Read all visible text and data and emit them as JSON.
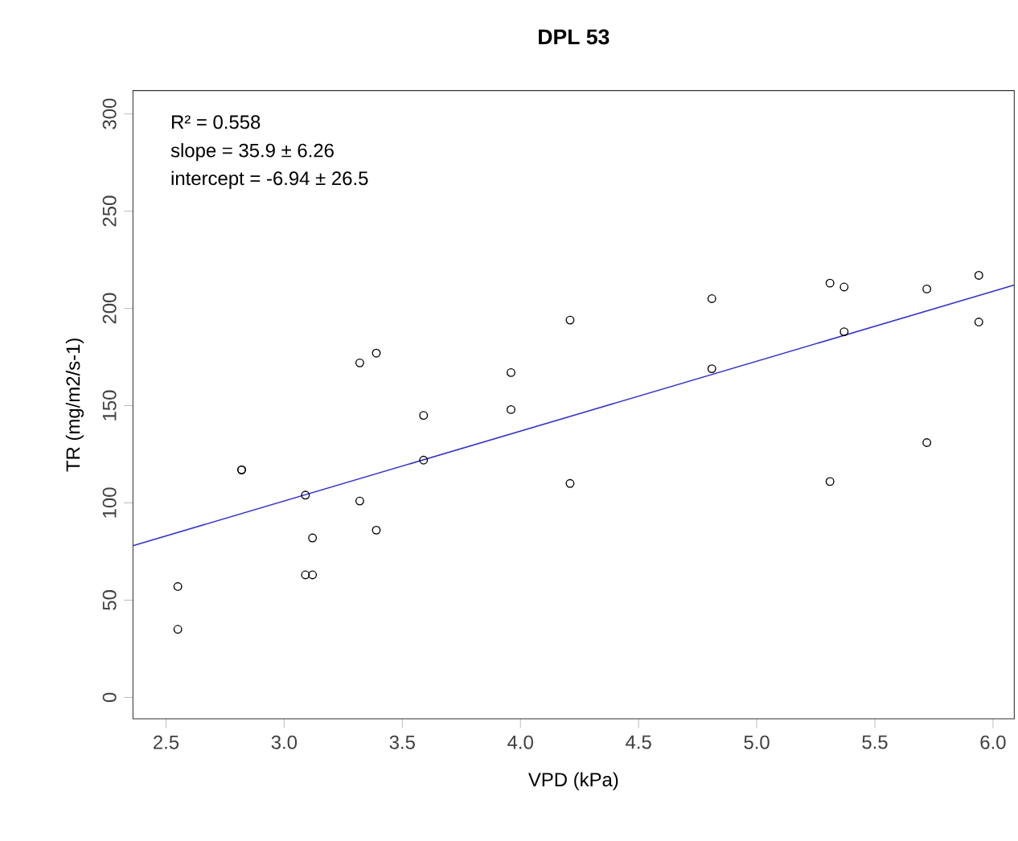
{
  "chart_data": {
    "type": "scatter",
    "title": "DPL 53",
    "xlabel": "VPD (kPa)",
    "ylabel": "TR (mg/m2/s-1)",
    "xlim": [
      2.36,
      6.09
    ],
    "ylim": [
      -11,
      312
    ],
    "xticks": [
      {
        "value": 2.5,
        "label": "2.5"
      },
      {
        "value": 3,
        "label": "3.0"
      },
      {
        "value": 3.5,
        "label": "3.5"
      },
      {
        "value": 4,
        "label": "4.0"
      },
      {
        "value": 4.5,
        "label": "4.5"
      },
      {
        "value": 5,
        "label": "5.0"
      },
      {
        "value": 5.5,
        "label": "5.5"
      },
      {
        "value": 6,
        "label": "6.0"
      }
    ],
    "yticks": [
      0,
      50,
      100,
      150,
      200,
      250,
      300
    ],
    "annotations": [
      "R² = 0.558",
      "slope = 35.9 ± 6.26",
      "intercept = -6.94 ± 26.5"
    ],
    "series": [
      {
        "color": "#000000",
        "marker": "circle",
        "x": [
          2.55,
          2.55,
          2.82,
          2.82,
          3.09,
          3.12,
          3.09,
          3.12,
          3.32,
          3.39,
          3.32,
          3.39,
          3.59,
          3.59,
          3.96,
          3.96,
          4.21,
          4.21,
          4.81,
          4.81,
          5.31,
          5.37,
          5.37,
          5.31,
          5.72,
          5.72,
          5.94,
          5.94
        ],
        "values": [
          57,
          35,
          117,
          117,
          104,
          82,
          63,
          63,
          172,
          177,
          101,
          86,
          145,
          122,
          167,
          148,
          194,
          110,
          205,
          169,
          213,
          211,
          188,
          111,
          210,
          131,
          217,
          193
        ]
      },
      {
        "type": "line",
        "color": "#3333cc",
        "marker": "none",
        "x": [
          2.36,
          6.09
        ],
        "values": [
          78,
          212
        ]
      }
    ]
  }
}
